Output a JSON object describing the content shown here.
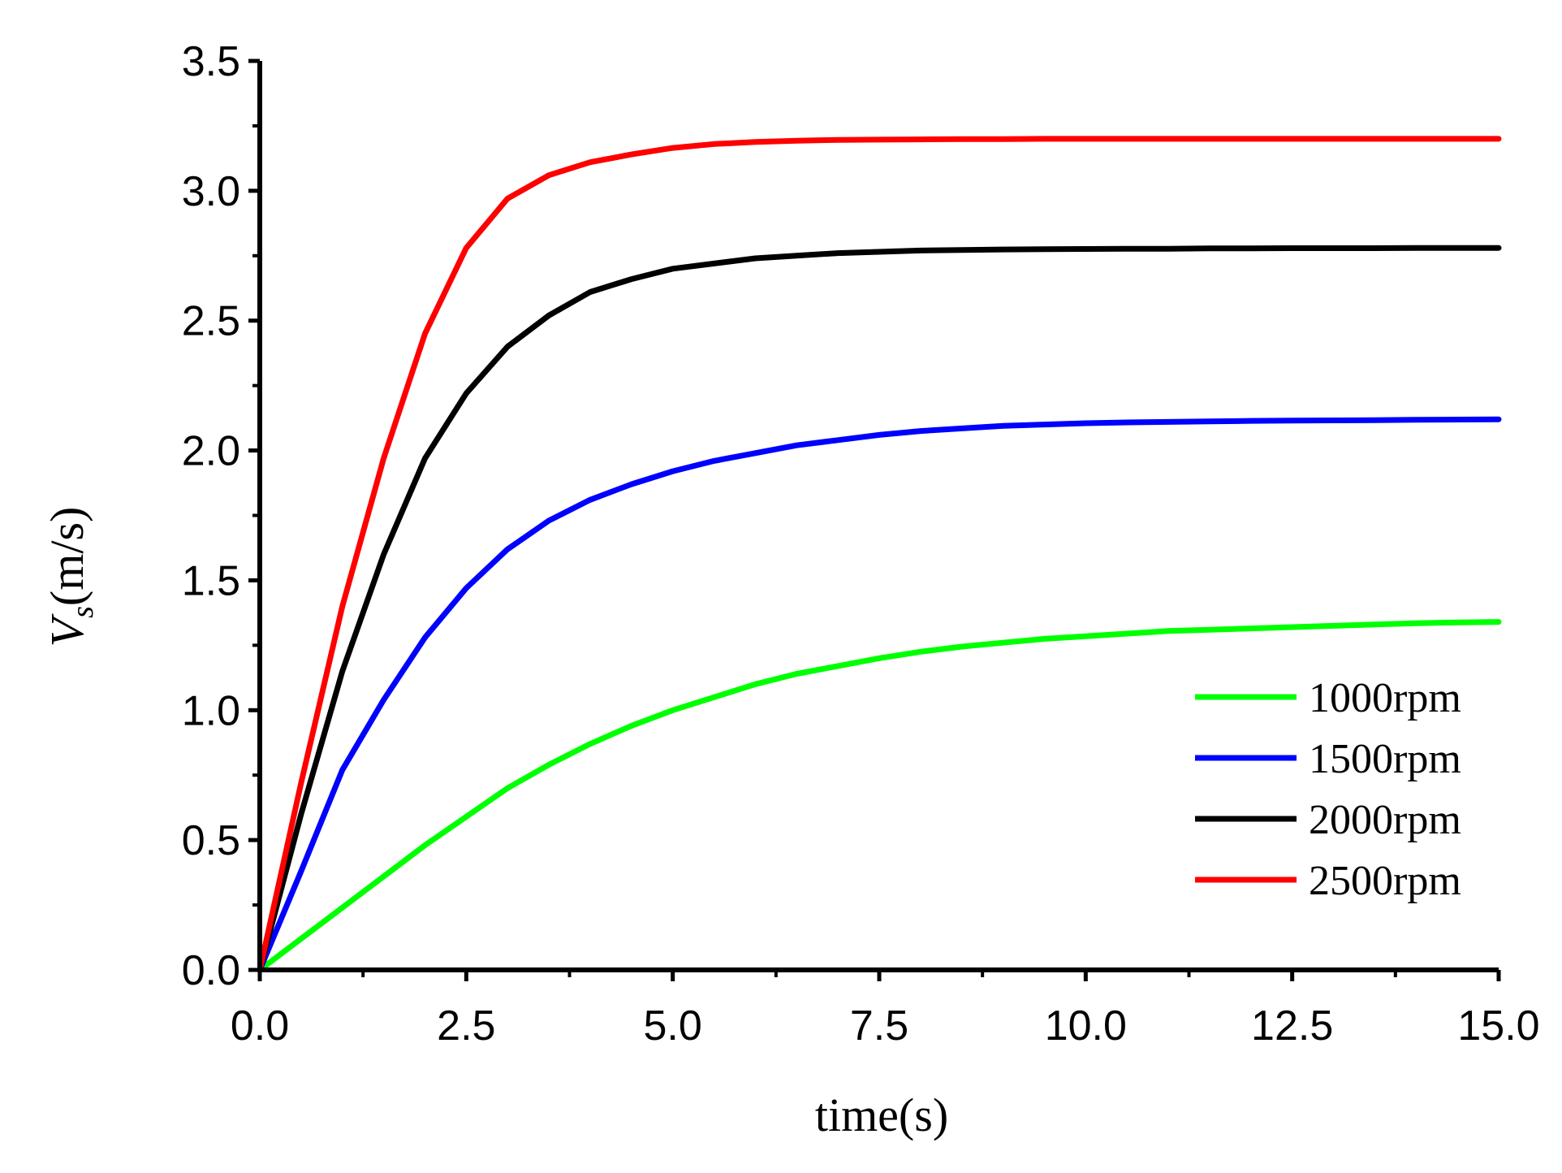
{
  "chart_data": {
    "type": "line",
    "title": "",
    "xlabel": "time(s)",
    "ylabel": {
      "main": "V",
      "subscript": "s",
      "unit": "(m/s)"
    },
    "xlim": [
      0,
      15
    ],
    "ylim": [
      0,
      3.5
    ],
    "x_ticks": [
      "0.0",
      "2.5",
      "5.0",
      "7.5",
      "10.0",
      "12.5",
      "15.0"
    ],
    "y_ticks": [
      "0.0",
      "0.5",
      "1.0",
      "1.5",
      "2.0",
      "2.5",
      "3.0",
      "3.5"
    ],
    "grid": false,
    "legend_position": "bottom-right",
    "x": [
      0,
      0.5,
      1,
      1.5,
      2,
      2.5,
      3,
      3.5,
      4,
      4.5,
      5,
      5.5,
      6,
      6.5,
      7,
      7.5,
      8,
      8.5,
      9,
      9.5,
      10,
      10.5,
      11,
      11.5,
      12,
      12.5,
      13,
      13.5,
      14,
      14.5,
      15
    ],
    "series": [
      {
        "name": "1000rpm",
        "color": "#00ff00",
        "values": [
          0,
          0.12,
          0.24,
          0.36,
          0.48,
          0.59,
          0.7,
          0.79,
          0.87,
          0.94,
          1.0,
          1.05,
          1.1,
          1.14,
          1.17,
          1.2,
          1.225,
          1.245,
          1.26,
          1.275,
          1.285,
          1.295,
          1.305,
          1.31,
          1.315,
          1.32,
          1.325,
          1.33,
          1.335,
          1.338,
          1.34
        ]
      },
      {
        "name": "1500rpm",
        "color": "#0000ff",
        "values": [
          0,
          0.38,
          0.77,
          1.04,
          1.28,
          1.47,
          1.62,
          1.73,
          1.81,
          1.87,
          1.92,
          1.96,
          1.99,
          2.02,
          2.04,
          2.06,
          2.075,
          2.085,
          2.095,
          2.1,
          2.105,
          2.108,
          2.11,
          2.112,
          2.114,
          2.115,
          2.116,
          2.117,
          2.118,
          2.119,
          2.12
        ]
      },
      {
        "name": "2000rpm",
        "color": "#000000",
        "values": [
          0,
          0.6,
          1.15,
          1.6,
          1.97,
          2.22,
          2.4,
          2.52,
          2.61,
          2.66,
          2.7,
          2.72,
          2.74,
          2.75,
          2.76,
          2.765,
          2.77,
          2.772,
          2.774,
          2.775,
          2.776,
          2.777,
          2.777,
          2.778,
          2.778,
          2.779,
          2.779,
          2.779,
          2.78,
          2.78,
          2.78
        ]
      },
      {
        "name": "2500rpm",
        "color": "#ff0000",
        "values": [
          0,
          0.72,
          1.4,
          1.97,
          2.45,
          2.78,
          2.97,
          3.06,
          3.11,
          3.14,
          3.165,
          3.18,
          3.188,
          3.193,
          3.196,
          3.197,
          3.198,
          3.199,
          3.199,
          3.2,
          3.2,
          3.2,
          3.2,
          3.2,
          3.2,
          3.2,
          3.2,
          3.2,
          3.2,
          3.2,
          3.2
        ]
      }
    ]
  }
}
